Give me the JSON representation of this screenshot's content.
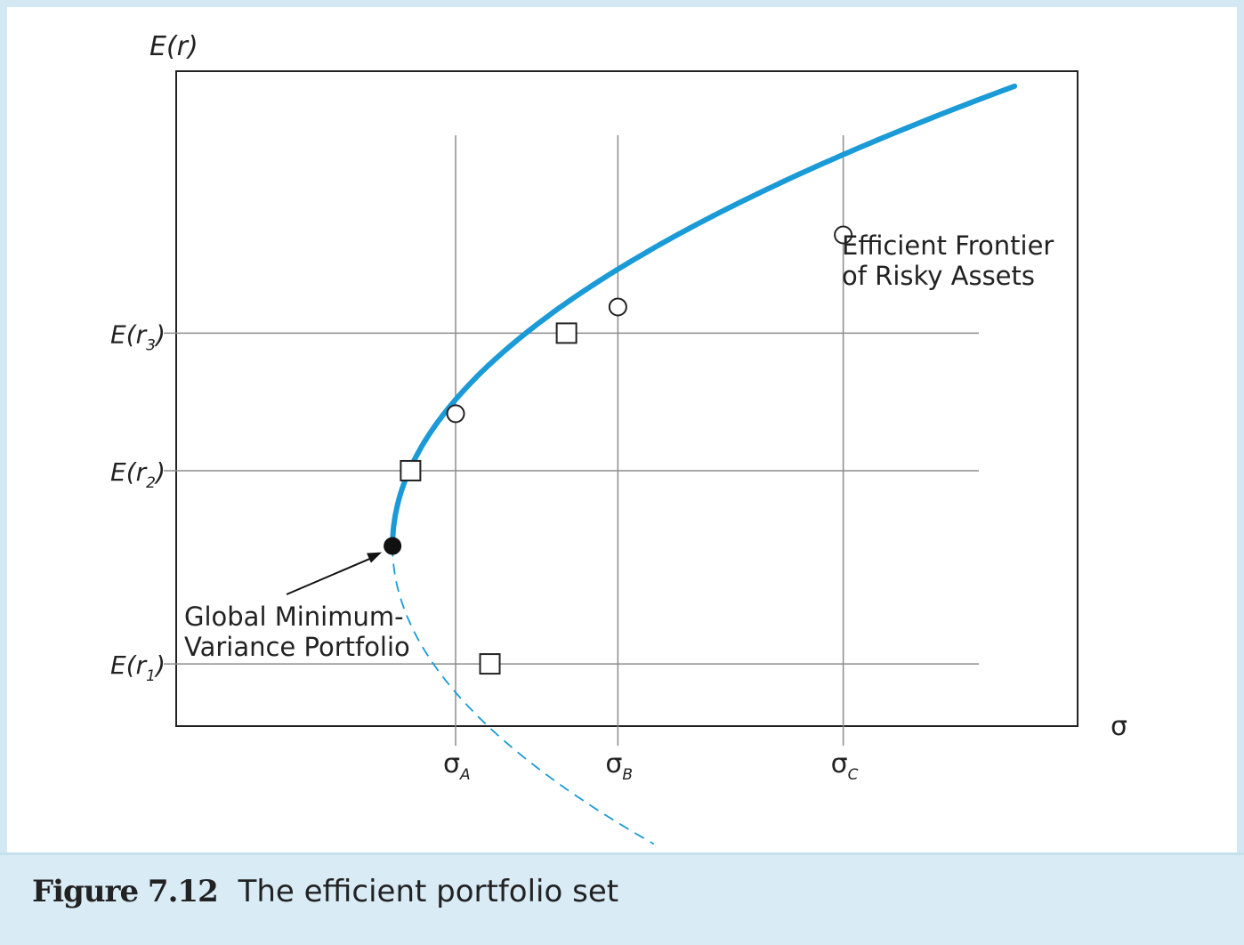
{
  "chart_data": {
    "type": "line",
    "xlabel": "σ",
    "ylabel": "E(r)",
    "xlim": [
      0,
      10
    ],
    "ylim": [
      0,
      10
    ],
    "grid": true,
    "x_ticks": [
      {
        "value": 3.1,
        "label": "σ",
        "sub": "A"
      },
      {
        "value": 4.9,
        "label": "σ",
        "sub": "B"
      },
      {
        "value": 7.4,
        "label": "σ",
        "sub": "C"
      }
    ],
    "y_ticks": [
      {
        "value": 0.95,
        "label": "E(r",
        "sub": "1",
        "close": ")"
      },
      {
        "value": 3.9,
        "label": "E(r",
        "sub": "2",
        "close": ")"
      },
      {
        "value": 6.0,
        "label": "E(r",
        "sub": "3",
        "close": ")"
      }
    ],
    "frontier_apex": {
      "x": 2.4,
      "y": 2.75
    },
    "frontier_curvature": 14,
    "efficient_frontier_end_x": 9.3,
    "inefficient_end_x": 5.3,
    "efficient_frontier_label": [
      "Efficient Frontier",
      "of Risky Assets"
    ],
    "gmv_label": [
      "Global Minimum-",
      "Variance Portfolio"
    ],
    "square_points": [
      {
        "x": 2.6,
        "y": 3.9
      },
      {
        "x": 4.33,
        "y": 6.0
      },
      {
        "x": 3.48,
        "y": 0.95
      }
    ],
    "circle_points": [
      {
        "x": 3.1,
        "y": 4.77
      },
      {
        "x": 4.9,
        "y": 6.4
      },
      {
        "x": 7.4,
        "y": 7.5
      }
    ],
    "colors": {
      "frontier": "#1a9ad6",
      "inefficient": "#1a9ad6",
      "grid": "#8c8c8c",
      "frame": "#222222"
    }
  },
  "caption": {
    "figure_label": "Figure 7.12",
    "title": "The efficient portfolio set"
  }
}
